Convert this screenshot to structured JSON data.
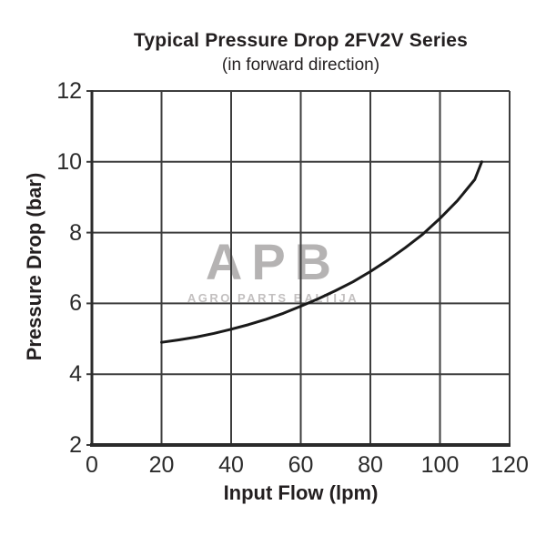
{
  "chart": {
    "title": "Typical Pressure Drop 2FV2V Series",
    "subtitle": "(in forward direction)",
    "xlabel": "Input Flow (lpm)",
    "ylabel": "Pressure Drop (bar)"
  },
  "watermark": {
    "logo": "APB",
    "subtext": "AGRO PARTS BALTIJA"
  },
  "colors": {
    "grid": "#3d3d3d",
    "axis": "#2b2b2b",
    "curve": "#1a1a1a",
    "text": "#231f20",
    "watermark": "#b5b3b3"
  },
  "chart_data": {
    "type": "line",
    "title": "Typical Pressure Drop 2FV2V Series (in forward direction)",
    "xlabel": "Input Flow (lpm)",
    "ylabel": "Pressure Drop (bar)",
    "xlim": [
      0,
      120
    ],
    "ylim": [
      2,
      12
    ],
    "x_ticks": [
      0,
      20,
      40,
      60,
      80,
      100,
      120
    ],
    "y_ticks": [
      2,
      4,
      6,
      8,
      10,
      12
    ],
    "grid": true,
    "legend": false,
    "series": [
      {
        "name": "pressure-drop-forward-direction",
        "x": [
          20,
          25,
          30,
          35,
          40,
          45,
          50,
          55,
          60,
          65,
          70,
          75,
          80,
          85,
          90,
          95,
          100,
          105,
          110,
          112
        ],
        "y": [
          4.9,
          4.97,
          5.05,
          5.15,
          5.27,
          5.4,
          5.55,
          5.72,
          5.92,
          6.13,
          6.36,
          6.61,
          6.9,
          7.22,
          7.57,
          7.95,
          8.4,
          8.9,
          9.5,
          10.0
        ]
      }
    ]
  }
}
